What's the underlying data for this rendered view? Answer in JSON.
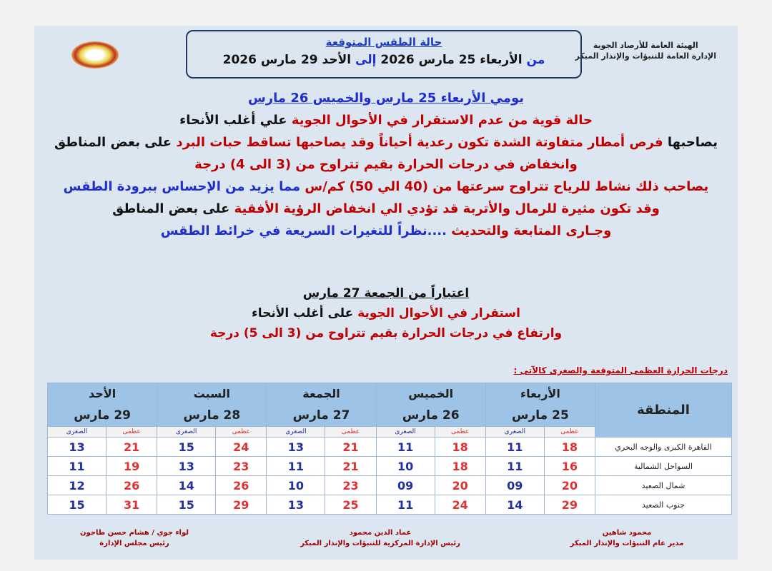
{
  "org": {
    "line1": "الهيئة العامة للأرصاد الجوية",
    "line2": "الإدارة العامة للتنبؤات والإنذار المبكر"
  },
  "header": {
    "title": "حالة الطقس المتوقعة",
    "from": "من",
    "from_date": "الأربعاء 25 مارس 2026",
    "to": "إلى",
    "to_date": "الأحد 29 مارس 2026"
  },
  "section1": {
    "heading": "يومي الأربعاء 25 مارس والخميس 26 مارس",
    "l1a": "حالة قوية من عدم الاستقرار في الأحوال الجوية",
    "l1b": "علي أغلب الأنحاء",
    "l2a": "يصاحبها",
    "l2b": "فرص أمطار متفاوتة الشدة تكون رعدية أحياناً وقد يصاحبها تساقط حبات البرد",
    "l2c": "على بعض المناطق",
    "l3": "وانخفاض في درجات الحرارة بقيم تتراوح من (3 الى 4) درجة",
    "l4a": "يصاحب ذلك نشاط للرياح تتراوح سرعتها من (40 الي 50) كم/س",
    "l4b": "مما يزيد من الإحساس ببرودة الطقس",
    "l5a": "وقد تكون مثيرة للرمال والأتربة قد تؤدي الي انخفاض الرؤية الأفقية",
    "l5b": "على بعض المناطق",
    "l6a": "وجـارى المتابعة والتحديث",
    "l6b": "....نظراً للتغيرات السريعة في خرائط الطقس"
  },
  "section2": {
    "heading": "اعتباراً من  الجمعة 27 مارس",
    "l1a": "استقرار في الأحوال الجوية",
    "l1b": "على أغلب الأنحاء",
    "l2": "وارتفاع في درجات الحرارة بقيم تتراوح من (3 الى 5) درجة"
  },
  "table": {
    "caption": "درجات الحرارة العظمى المتوقعة والصغرى كالآتى :",
    "region_header": "المنطقة",
    "max_label": "عظمى",
    "min_label": "الصغرى",
    "days": [
      {
        "day": "الأربعاء",
        "date": "25 مارس"
      },
      {
        "day": "الخميس",
        "date": "26 مارس"
      },
      {
        "day": "الجمعة",
        "date": "27 مارس"
      },
      {
        "day": "السبت",
        "date": "28 مارس"
      },
      {
        "day": "الأحد",
        "date": "29 مارس"
      }
    ],
    "rows": [
      {
        "region": "القاهرة الكبرى والوجه البحري",
        "values": [
          "18",
          "11",
          "18",
          "11",
          "21",
          "13",
          "24",
          "15",
          "21",
          "13"
        ]
      },
      {
        "region": "السواحل الشمالية",
        "values": [
          "16",
          "11",
          "18",
          "10",
          "21",
          "11",
          "23",
          "13",
          "19",
          "11"
        ]
      },
      {
        "region": "شمال الصعيد",
        "values": [
          "20",
          "09",
          "20",
          "09",
          "23",
          "10",
          "26",
          "14",
          "26",
          "12"
        ]
      },
      {
        "region": "جنوب الصعيد",
        "values": [
          "29",
          "14",
          "24",
          "11",
          "25",
          "13",
          "29",
          "15",
          "31",
          "15"
        ]
      }
    ]
  },
  "signatures": [
    {
      "name": "محمود شاهين",
      "title": "مدير عام التنبؤات والإنذار المبكر"
    },
    {
      "name": "عماد الدين محمود",
      "title": "رئيس الإدارة المركزية للتنبؤات والإنذار المبكر"
    },
    {
      "name": "لواء جوي / هشام حسن طاحون",
      "title": "رئيس مجلس الإدارة"
    }
  ],
  "colors": {
    "blue": "#1f2fcf",
    "red": "#c00000",
    "header_fill": "#9dc3e6"
  }
}
